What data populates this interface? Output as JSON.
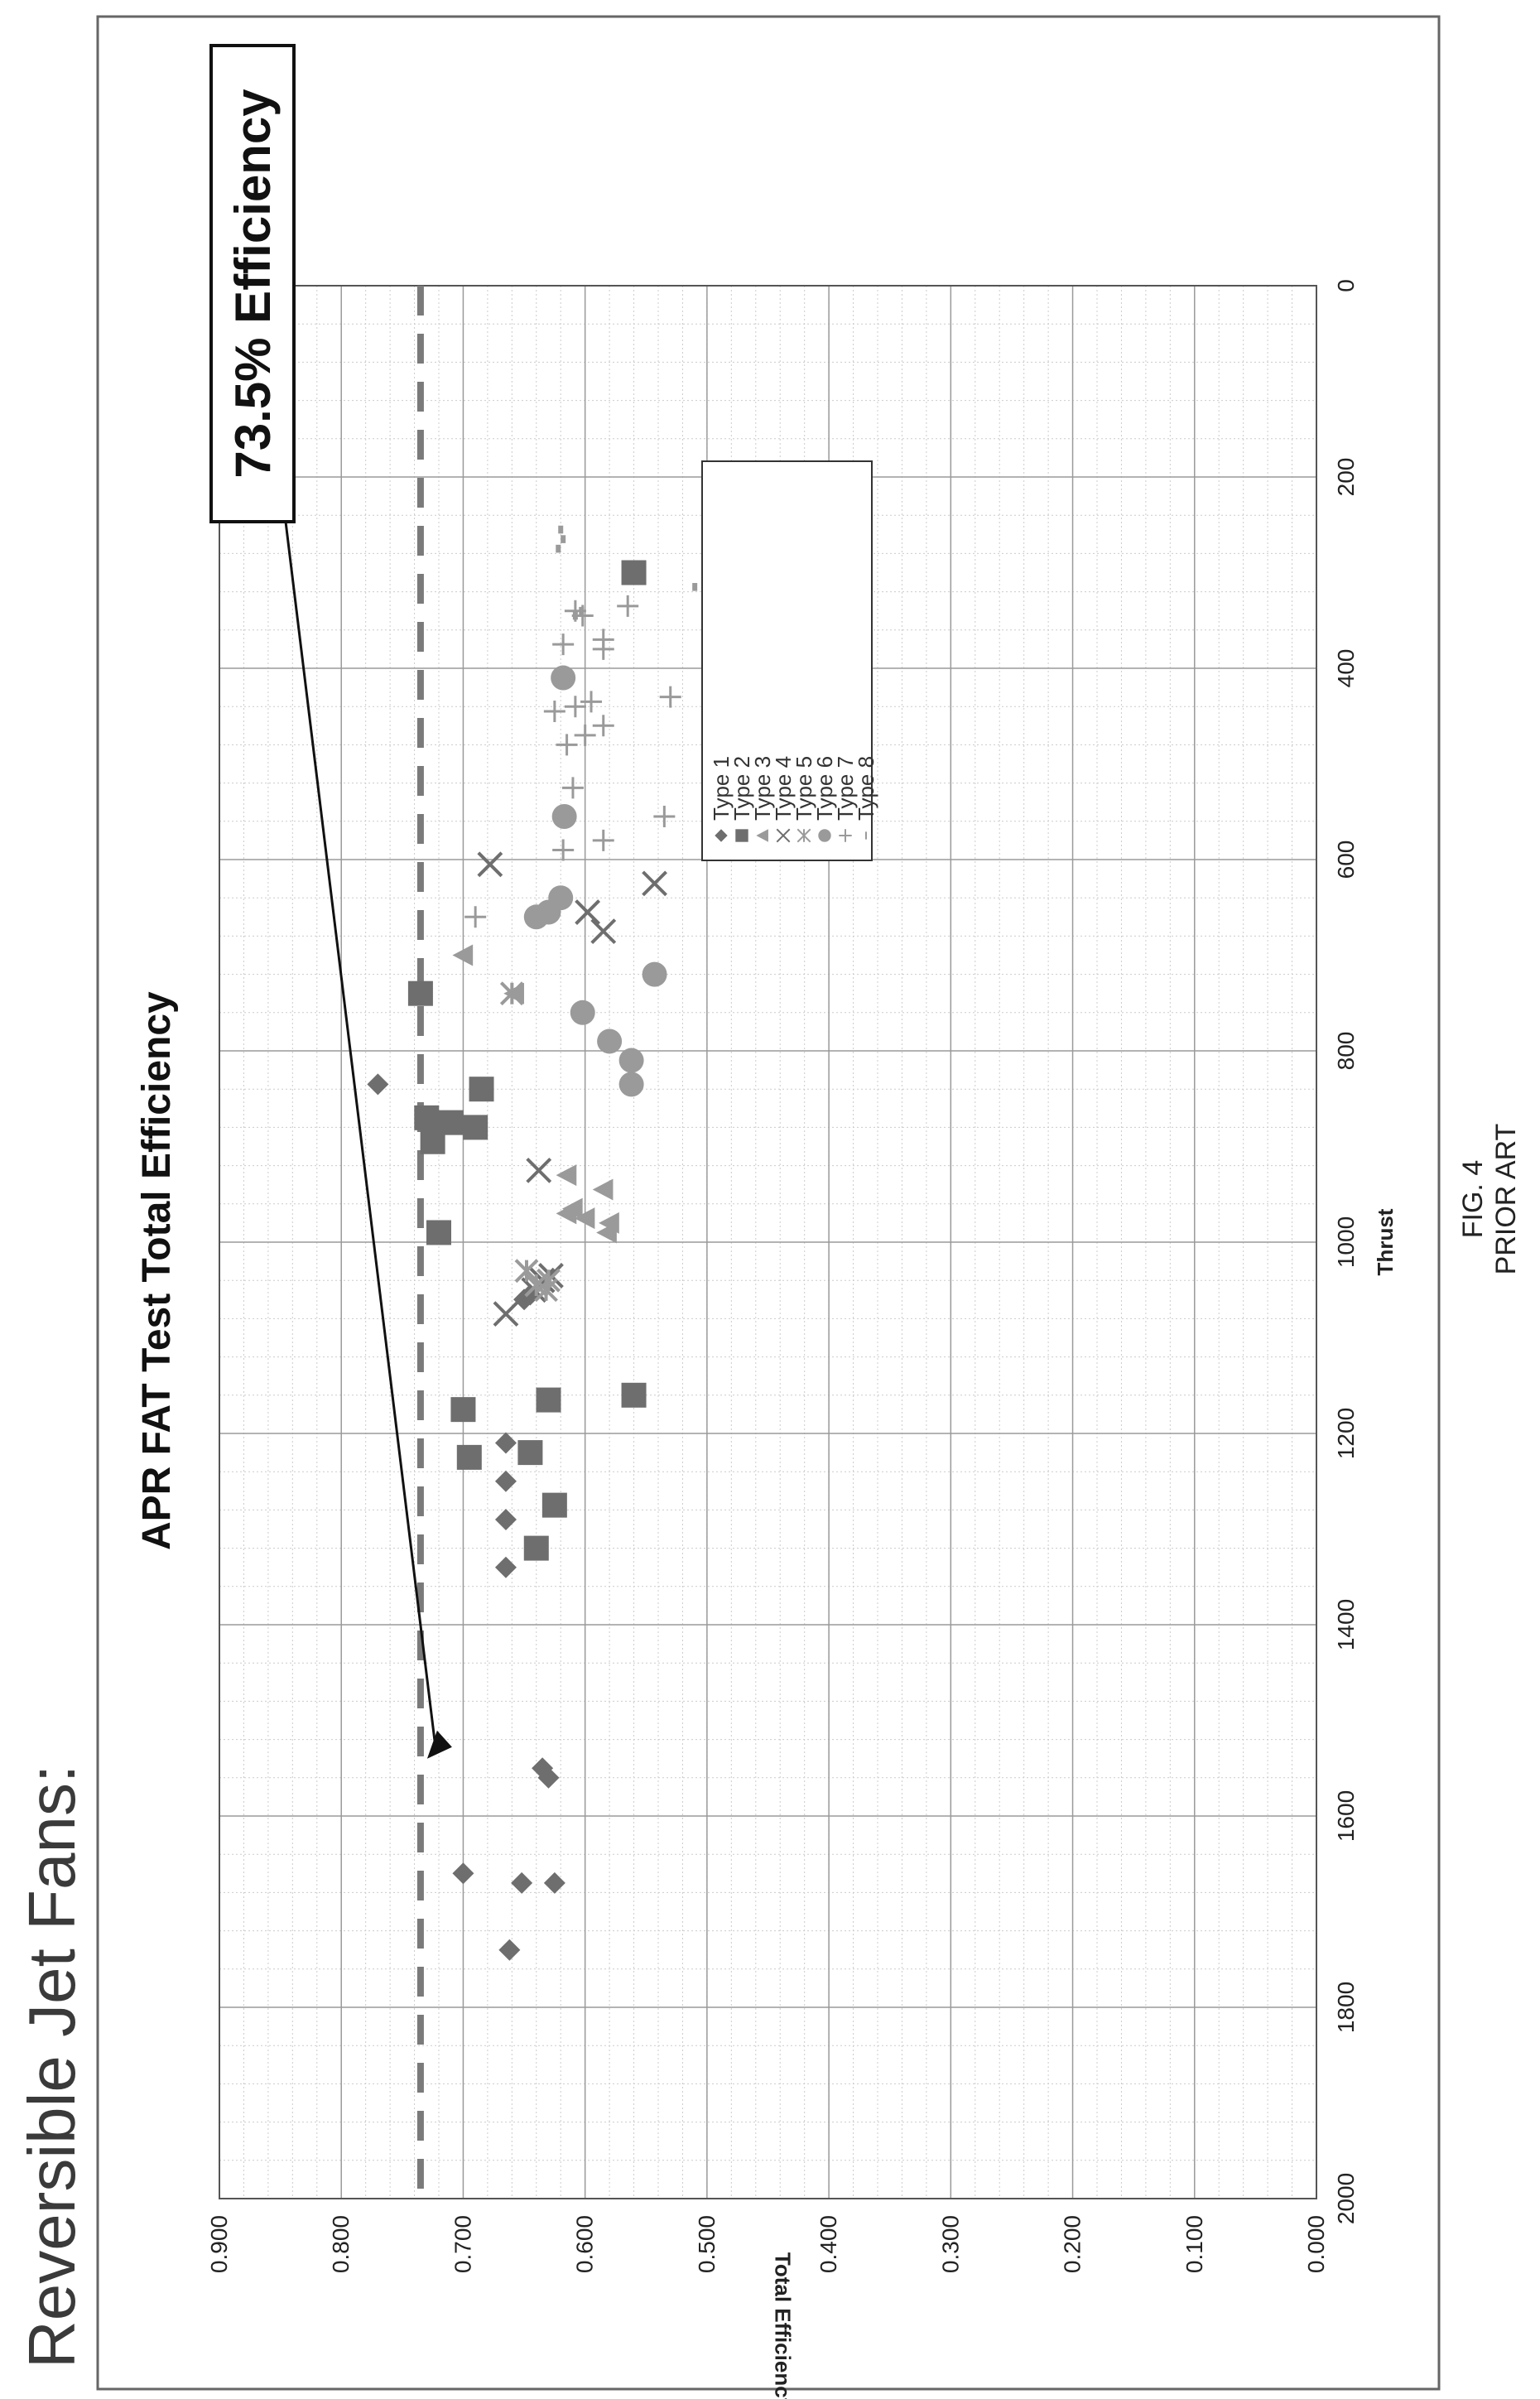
{
  "page": {
    "heading": "Reversible Jet Fans:",
    "fig_label": "FIG. 4",
    "fig_sublabel": "PRIOR ART"
  },
  "colors": {
    "marker": "#6e6e6e",
    "marker_light": "#9a9a9a",
    "dashed_line": "#7a7a7a",
    "grid_major": "#9a9a9a",
    "grid_minor": "#cccccc"
  },
  "chart_data": {
    "type": "scatter",
    "title": "APR FAT Test Total Efficiency",
    "xlabel": "Thrust",
    "ylabel": "Total Efficiency",
    "xlim": [
      0,
      2000
    ],
    "ylim": [
      0,
      0.9
    ],
    "x_ticks": [
      "0",
      "200",
      "400",
      "600",
      "800",
      "1000",
      "1200",
      "1400",
      "1600",
      "1800",
      "2000"
    ],
    "y_ticks": [
      "0.000",
      "0.100",
      "0.200",
      "0.300",
      "0.400",
      "0.500",
      "0.600",
      "0.700",
      "0.800",
      "0.900"
    ],
    "grid": true,
    "legend_position": "inside-right",
    "reference_line": {
      "y": 0.735,
      "style": "dashed"
    },
    "callout": {
      "text": "73.5% Efficiency",
      "target": {
        "x": 1540,
        "y": 0.735
      }
    },
    "series": [
      {
        "name": "Type 1",
        "marker": "diamond",
        "points": [
          [
            835,
            0.77
          ],
          [
            1210,
            0.665
          ],
          [
            1250,
            0.665
          ],
          [
            1290,
            0.665
          ],
          [
            1340,
            0.665
          ],
          [
            1550,
            0.635
          ],
          [
            1560,
            0.63
          ],
          [
            1660,
            0.7
          ],
          [
            1670,
            0.652
          ],
          [
            1670,
            0.625
          ],
          [
            1740,
            0.662
          ],
          [
            1060,
            0.65
          ],
          [
            1055,
            0.645
          ]
        ]
      },
      {
        "name": "Type 2",
        "marker": "square",
        "points": [
          [
            300,
            0.56
          ],
          [
            740,
            0.735
          ],
          [
            840,
            0.685
          ],
          [
            870,
            0.73
          ],
          [
            875,
            0.71
          ],
          [
            880,
            0.69
          ],
          [
            895,
            0.725
          ],
          [
            990,
            0.72
          ],
          [
            1160,
            0.56
          ],
          [
            1165,
            0.63
          ],
          [
            1175,
            0.7
          ],
          [
            1220,
            0.645
          ],
          [
            1225,
            0.695
          ],
          [
            1275,
            0.625
          ],
          [
            1320,
            0.64
          ]
        ]
      },
      {
        "name": "Type 3",
        "marker": "triangle",
        "points": [
          [
            700,
            0.7
          ],
          [
            740,
            0.658
          ],
          [
            930,
            0.615
          ],
          [
            945,
            0.585
          ],
          [
            965,
            0.61
          ],
          [
            970,
            0.615
          ],
          [
            975,
            0.6
          ],
          [
            980,
            0.58
          ],
          [
            990,
            0.582
          ]
        ]
      },
      {
        "name": "Type 4",
        "marker": "x",
        "points": [
          [
            605,
            0.678
          ],
          [
            625,
            0.543
          ],
          [
            655,
            0.598
          ],
          [
            675,
            0.585
          ],
          [
            925,
            0.638
          ],
          [
            1040,
            0.635
          ],
          [
            1050,
            0.642
          ],
          [
            1075,
            0.665
          ],
          [
            1035,
            0.628
          ]
        ]
      },
      {
        "name": "Type 5",
        "marker": "star",
        "points": [
          [
            740,
            0.66
          ],
          [
            1045,
            0.64
          ],
          [
            1040,
            0.63
          ],
          [
            1030,
            0.648
          ],
          [
            1050,
            0.632
          ]
        ]
      },
      {
        "name": "Type 6",
        "marker": "circle",
        "points": [
          [
            410,
            0.618
          ],
          [
            555,
            0.617
          ],
          [
            640,
            0.62
          ],
          [
            655,
            0.63
          ],
          [
            660,
            0.64
          ],
          [
            720,
            0.543
          ],
          [
            760,
            0.602
          ],
          [
            790,
            0.58
          ],
          [
            810,
            0.562
          ],
          [
            835,
            0.562
          ]
        ]
      },
      {
        "name": "Type 7",
        "marker": "plus",
        "points": [
          [
            335,
            0.565
          ],
          [
            340,
            0.608
          ],
          [
            345,
            0.602
          ],
          [
            370,
            0.585
          ],
          [
            375,
            0.618
          ],
          [
            380,
            0.585
          ],
          [
            430,
            0.53
          ],
          [
            435,
            0.595
          ],
          [
            440,
            0.608
          ],
          [
            445,
            0.625
          ],
          [
            460,
            0.585
          ],
          [
            470,
            0.6
          ],
          [
            480,
            0.615
          ],
          [
            525,
            0.61
          ],
          [
            555,
            0.535
          ],
          [
            580,
            0.585
          ],
          [
            590,
            0.618
          ],
          [
            660,
            0.69
          ]
        ]
      },
      {
        "name": "Type 8",
        "marker": "dash",
        "points": [
          [
            255,
            0.62
          ],
          [
            265,
            0.618
          ],
          [
            275,
            0.622
          ],
          [
            315,
            0.51
          ],
          [
            340,
            0.603
          ],
          [
            345,
            0.608
          ],
          [
            355,
            0.47
          ]
        ]
      }
    ]
  }
}
